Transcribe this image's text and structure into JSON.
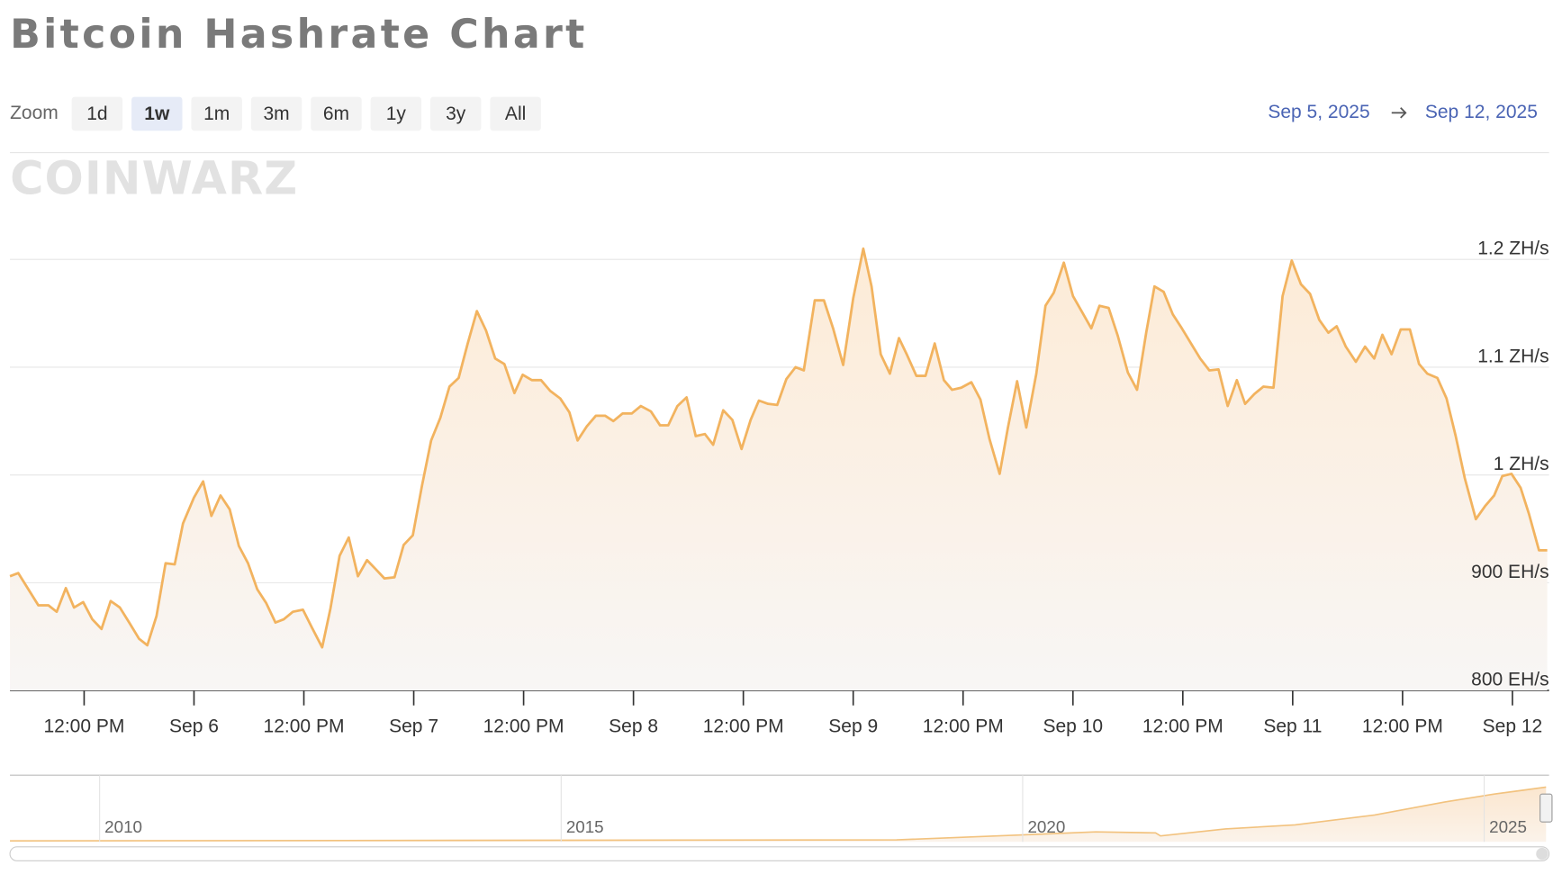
{
  "header": {
    "title": "Bitcoin Hashrate Chart"
  },
  "toolbar": {
    "zoom_label": "Zoom",
    "zoom_buttons": [
      "1d",
      "1w",
      "1m",
      "3m",
      "6m",
      "1y",
      "3y",
      "All"
    ],
    "selected": "1w"
  },
  "date_range": {
    "from": "Sep 5, 2025",
    "to": "Sep 12, 2025"
  },
  "watermark": "COINWARZ",
  "chart_data": {
    "type": "line",
    "color": "#f2b35f",
    "area": true,
    "grid": true,
    "xlim": [
      3.9,
      172
    ],
    "ylim": [
      800,
      1300
    ],
    "xticks": [
      {
        "value": 12,
        "label": "12:00 PM"
      },
      {
        "value": 24,
        "label": "Sep 6"
      },
      {
        "value": 36,
        "label": "12:00 PM"
      },
      {
        "value": 48,
        "label": "Sep 7"
      },
      {
        "value": 60,
        "label": "12:00 PM"
      },
      {
        "value": 72,
        "label": "Sep 8"
      },
      {
        "value": 84,
        "label": "12:00 PM"
      },
      {
        "value": 96,
        "label": "Sep 9"
      },
      {
        "value": 108,
        "label": "12:00 PM"
      },
      {
        "value": 120,
        "label": "Sep 10"
      },
      {
        "value": 132,
        "label": "12:00 PM"
      },
      {
        "value": 144,
        "label": "Sep 11"
      },
      {
        "value": 156,
        "label": "12:00 PM"
      },
      {
        "value": 168,
        "label": "Sep 12"
      }
    ],
    "yticks": [
      {
        "value": 800,
        "label": "800 EH/s"
      },
      {
        "value": 900,
        "label": "900 EH/s"
      },
      {
        "value": 1000,
        "label": "1 ZH/s"
      },
      {
        "value": 1100,
        "label": "1.1 ZH/s"
      },
      {
        "value": 1200,
        "label": "1.2 ZH/s"
      }
    ],
    "x": [
      3.9,
      4.8,
      7.0,
      8.1,
      9.0,
      10.0,
      10.9,
      11.9,
      12.9,
      13.9,
      14.9,
      15.9,
      17.0,
      18.0,
      18.9,
      19.9,
      20.9,
      21.9,
      22.8,
      24.0,
      25.0,
      25.9,
      26.9,
      27.9,
      28.9,
      29.9,
      30.9,
      31.9,
      32.9,
      33.8,
      34.8,
      35.9,
      36.9,
      38.0,
      38.9,
      39.9,
      40.9,
      41.9,
      42.9,
      43.8,
      44.8,
      45.9,
      46.9,
      47.9,
      48.9,
      49.9,
      50.9,
      51.9,
      52.9,
      53.9,
      54.9,
      55.9,
      56.9,
      57.9,
      59.0,
      59.9,
      60.9,
      61.9,
      62.9,
      64.0,
      65.0,
      65.9,
      66.9,
      67.9,
      68.9,
      69.8,
      70.8,
      71.8,
      72.8,
      73.9,
      74.9,
      75.8,
      76.8,
      77.8,
      78.8,
      79.8,
      80.7,
      81.8,
      82.8,
      83.8,
      84.8,
      85.7,
      86.7,
      87.7,
      88.7,
      89.7,
      90.6,
      91.8,
      92.8,
      93.8,
      94.9,
      96.0,
      97.1,
      98.0,
      99.0,
      100.0,
      101.0,
      101.9,
      102.9,
      103.9,
      104.9,
      105.9,
      106.8,
      107.8,
      108.9,
      109.9,
      110.9,
      112.0,
      112.9,
      113.9,
      114.9,
      116.0,
      117.0,
      117.9,
      119.0,
      120.0,
      121.0,
      122.0,
      122.9,
      123.9,
      124.9,
      126.0,
      127.0,
      128.0,
      128.9,
      129.9,
      130.9,
      131.9,
      132.9,
      133.9,
      134.9,
      135.9,
      136.9,
      137.9,
      138.8,
      139.8,
      140.8,
      141.9,
      142.9,
      143.9,
      144.9,
      145.9,
      146.9,
      147.9,
      148.8,
      149.8,
      150.9,
      151.9,
      152.9,
      153.8,
      154.8,
      155.8,
      156.8,
      157.8,
      158.7,
      159.8,
      160.8,
      161.8,
      162.8,
      164.0,
      165.0,
      166.0,
      166.9,
      167.9,
      168.9,
      169.8,
      170.9,
      171.8
    ],
    "values": [
      906,
      909,
      879,
      879,
      873,
      895,
      877,
      882,
      866,
      857,
      883,
      877,
      862,
      848,
      842,
      869,
      918,
      917,
      955,
      979,
      994,
      962,
      981,
      968,
      934,
      918,
      894,
      881,
      863,
      866,
      873,
      875,
      858,
      840,
      876,
      925,
      942,
      906,
      921,
      913,
      904,
      905,
      935,
      944,
      990,
      1032,
      1053,
      1082,
      1090,
      1122,
      1152,
      1134,
      1108,
      1103,
      1076,
      1093,
      1088,
      1088,
      1078,
      1071,
      1058,
      1032,
      1045,
      1055,
      1055,
      1050,
      1057,
      1057,
      1064,
      1059,
      1046,
      1046,
      1064,
      1072,
      1036,
      1038,
      1028,
      1060,
      1051,
      1024,
      1051,
      1069,
      1066,
      1065,
      1089,
      1100,
      1097,
      1162,
      1162,
      1136,
      1102,
      1164,
      1210,
      1175,
      1112,
      1094,
      1127,
      1111,
      1092,
      1092,
      1122,
      1088,
      1079,
      1081,
      1086,
      1070,
      1033,
      1001,
      1044,
      1087,
      1044,
      1094,
      1157,
      1169,
      1197,
      1166,
      1151,
      1136,
      1157,
      1155,
      1129,
      1095,
      1079,
      1132,
      1175,
      1170,
      1149,
      1136,
      1122,
      1108,
      1097,
      1098,
      1064,
      1088,
      1066,
      1075,
      1082,
      1081,
      1166,
      1199,
      1177,
      1168,
      1144,
      1132,
      1138,
      1119,
      1105,
      1119,
      1108,
      1130,
      1112,
      1135,
      1135,
      1103,
      1094,
      1090,
      1071,
      1036,
      997,
      959,
      971,
      981,
      999,
      1001,
      988,
      964,
      930,
      930
    ]
  },
  "navigator": {
    "labels": [
      "2010",
      "2015",
      "2020",
      "2025"
    ]
  }
}
